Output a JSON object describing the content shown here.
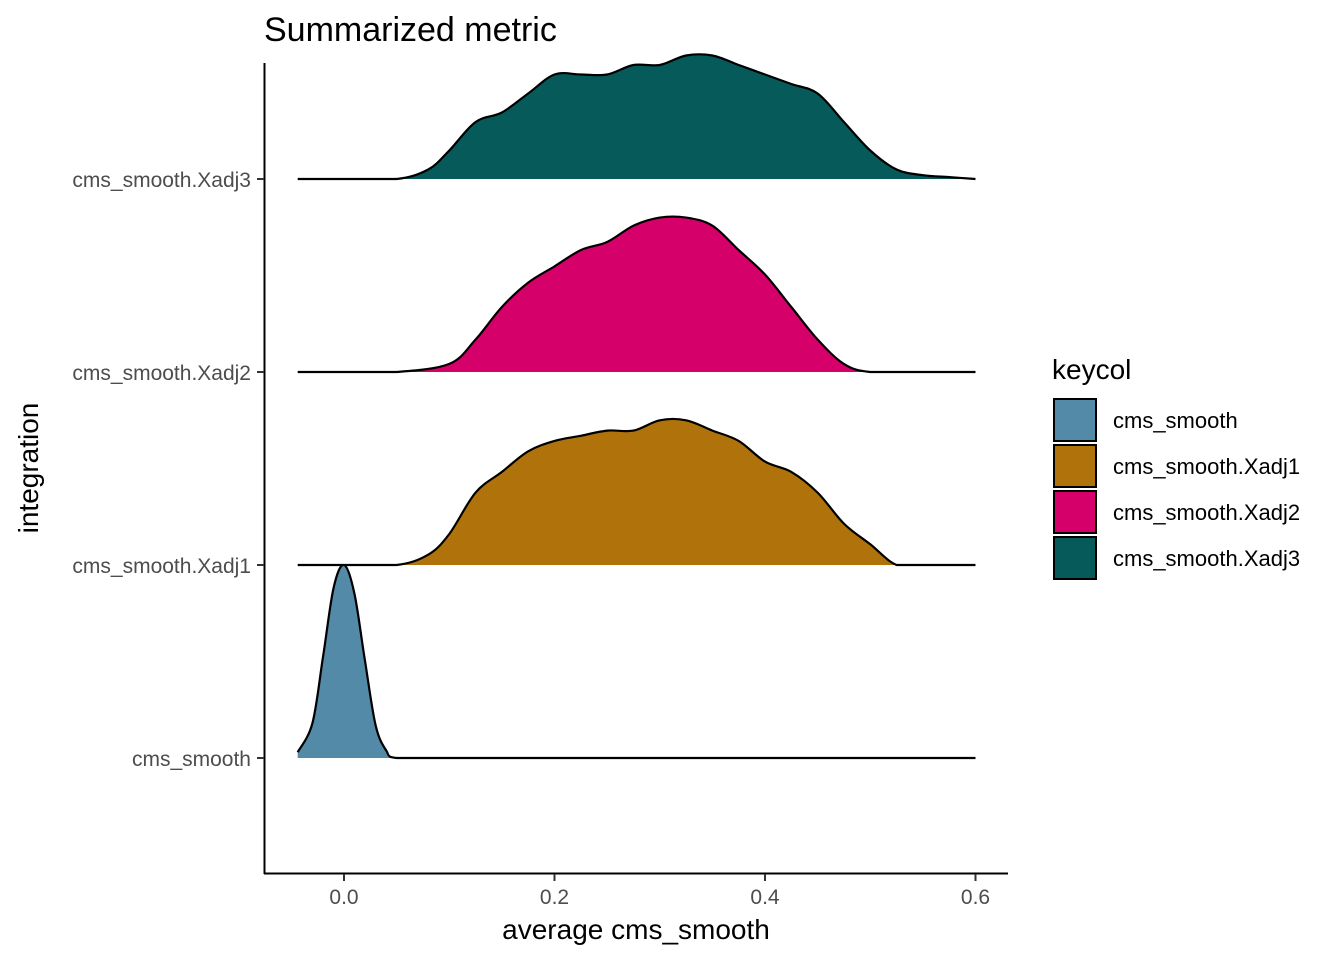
{
  "chart_data": {
    "type": "ridgeline",
    "title": "Summarized metric",
    "xlabel": "average cms_smooth",
    "ylabel": "integration",
    "xlim": [
      -0.075,
      0.63
    ],
    "x_ticks": [
      "0.0",
      "0.2",
      "0.4",
      "0.6"
    ],
    "x_tick_values": [
      0.0,
      0.2,
      0.4,
      0.6
    ],
    "categories": [
      "cms_smooth",
      "cms_smooth.Xadj1",
      "cms_smooth.Xadj2",
      "cms_smooth.Xadj3"
    ],
    "grid": false,
    "legend": {
      "title": "keycol",
      "placement": "right",
      "entries": [
        "cms_smooth",
        "cms_smooth.Xadj1",
        "cms_smooth.Xadj2",
        "cms_smooth.Xadj3"
      ]
    },
    "series": [
      {
        "name": "cms_smooth",
        "color": "#528aa8",
        "x": [
          -0.044,
          -0.03,
          -0.02,
          -0.01,
          0.0,
          0.01,
          0.02,
          0.03,
          0.04,
          0.05,
          0.1,
          0.2,
          0.3,
          0.4,
          0.5,
          0.6
        ],
        "density": [
          0.03,
          0.18,
          0.52,
          0.88,
          1.0,
          0.85,
          0.5,
          0.17,
          0.04,
          0.0,
          0.0,
          0.0,
          0.0,
          0.0,
          0.0,
          0.0
        ]
      },
      {
        "name": "cms_smooth.Xadj1",
        "color": "#b0730c",
        "x": [
          -0.044,
          0.0,
          0.05,
          0.08,
          0.1,
          0.125,
          0.15,
          0.175,
          0.2,
          0.225,
          0.25,
          0.275,
          0.3,
          0.325,
          0.35,
          0.375,
          0.4,
          0.425,
          0.45,
          0.475,
          0.5,
          0.525,
          0.55,
          0.6
        ],
        "density": [
          0.0,
          0.0,
          0.0,
          0.01,
          0.03,
          0.07,
          0.09,
          0.11,
          0.12,
          0.125,
          0.13,
          0.13,
          0.14,
          0.14,
          0.13,
          0.12,
          0.1,
          0.09,
          0.07,
          0.04,
          0.02,
          0.0,
          0.0,
          0.0
        ]
      },
      {
        "name": "cms_smooth.Xadj2",
        "color": "#d6006a",
        "x": [
          -0.044,
          0.0,
          0.05,
          0.1,
          0.125,
          0.15,
          0.175,
          0.2,
          0.225,
          0.25,
          0.275,
          0.3,
          0.325,
          0.35,
          0.375,
          0.4,
          0.425,
          0.45,
          0.475,
          0.5,
          0.55,
          0.6
        ],
        "density": [
          0.0,
          0.0,
          0.0,
          0.01,
          0.04,
          0.08,
          0.11,
          0.13,
          0.15,
          0.16,
          0.18,
          0.19,
          0.19,
          0.18,
          0.15,
          0.12,
          0.08,
          0.04,
          0.01,
          0.0,
          0.0,
          0.0
        ]
      },
      {
        "name": "cms_smooth.Xadj3",
        "color": "#065a5a",
        "x": [
          -0.044,
          0.0,
          0.05,
          0.08,
          0.1,
          0.125,
          0.15,
          0.175,
          0.2,
          0.225,
          0.25,
          0.275,
          0.3,
          0.325,
          0.35,
          0.375,
          0.4,
          0.425,
          0.45,
          0.475,
          0.5,
          0.525,
          0.55,
          0.575,
          0.6
        ],
        "density": [
          0.0,
          0.0,
          0.0,
          0.01,
          0.03,
          0.06,
          0.07,
          0.09,
          0.11,
          0.11,
          0.11,
          0.12,
          0.12,
          0.13,
          0.13,
          0.12,
          0.11,
          0.1,
          0.09,
          0.06,
          0.03,
          0.01,
          0.004,
          0.002,
          0.0
        ]
      }
    ]
  }
}
